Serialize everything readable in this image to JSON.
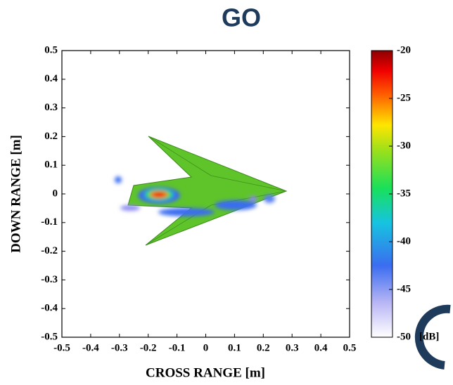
{
  "chart_data": {
    "type": "image",
    "title": "GO",
    "x_label": "CROSS RANGE [m]",
    "y_label": "DOWN RANGE [m]",
    "xlim": [
      -0.5,
      0.5
    ],
    "xticks": [
      -0.5,
      -0.4,
      -0.3,
      -0.2,
      -0.1,
      0,
      0.1,
      0.2,
      0.3,
      0.4,
      0.5
    ],
    "ylim": [
      -0.5,
      0.5
    ],
    "yticks": [
      -0.5,
      -0.4,
      -0.3,
      -0.2,
      -0.1,
      0,
      0.1,
      0.2,
      0.3,
      0.4,
      0.5
    ],
    "colorbar_lim": [
      -50,
      -20
    ],
    "colorbar_ticks": [
      -50,
      -45,
      -40,
      -35,
      -30,
      -25,
      -20
    ],
    "colorbar_label": "[dB]"
  }
}
